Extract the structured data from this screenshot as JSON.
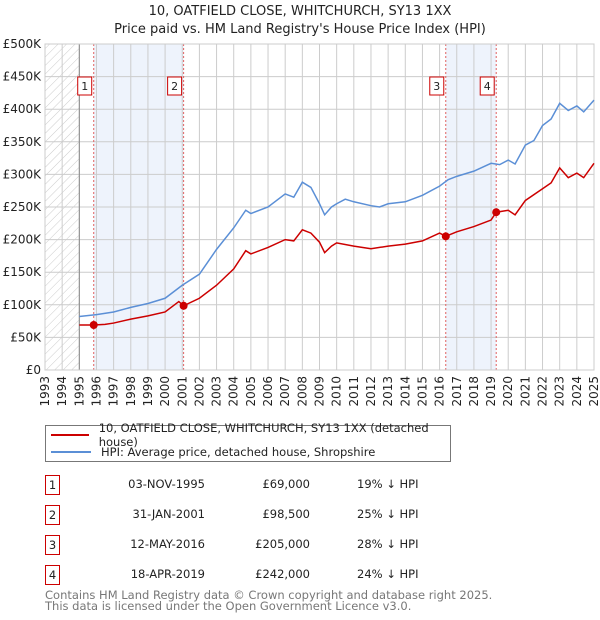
{
  "title_line1": "10, OATFIELD CLOSE, WHITCHURCH, SY13 1XX",
  "title_line2": "Price paid vs. HM Land Registry's House Price Index (HPI)",
  "colors": {
    "property": "#cc0000",
    "hpi": "#5b8fd6",
    "shade": "#eef3fc"
  },
  "chart_data": {
    "type": "line",
    "title": "10, OATFIELD CLOSE, WHITCHURCH, SY13 1XX — Price paid vs. HM Land Registry's House Price Index (HPI)",
    "xlim": [
      1993,
      2025
    ],
    "ylim": [
      0,
      500000
    ],
    "y_ticks": [
      0,
      50000,
      100000,
      150000,
      200000,
      250000,
      300000,
      350000,
      400000,
      450000,
      500000
    ],
    "y_tick_labels": [
      "£0",
      "£50K",
      "£100K",
      "£150K",
      "£200K",
      "£250K",
      "£300K",
      "£350K",
      "£400K",
      "£450K",
      "£500K"
    ],
    "x_ticks": [
      "1993",
      "1994",
      "1995",
      "1996",
      "1997",
      "1998",
      "1999",
      "2000",
      "2001",
      "2002",
      "2003",
      "2004",
      "2005",
      "2006",
      "2007",
      "2008",
      "2009",
      "2010",
      "2011",
      "2012",
      "2013",
      "2014",
      "2015",
      "2016",
      "2017",
      "2018",
      "2019",
      "2020",
      "2021",
      "2022",
      "2023",
      "2024",
      "2025"
    ],
    "grid": true,
    "legend_position": "below",
    "hatched_range": [
      1993,
      1995
    ],
    "shaded_ranges": [
      [
        1995.84,
        2001.08
      ],
      [
        2016.36,
        2019.3
      ]
    ],
    "series": [
      {
        "name": "10, OATFIELD CLOSE, WHITCHURCH, SY13 1XX (detached house)",
        "color": "#cc0000",
        "x": [
          1995.0,
          1995.84,
          1996.5,
          1997,
          1998,
          1999,
          2000,
          2000.8,
          2001.08,
          2002,
          2003,
          2004,
          2004.7,
          2005,
          2006,
          2007,
          2007.5,
          2008,
          2008.5,
          2009,
          2009.3,
          2009.7,
          2010,
          2011,
          2012,
          2013,
          2014,
          2015,
          2016,
          2016.36,
          2017,
          2018,
          2019,
          2019.3,
          2020,
          2020.4,
          2021,
          2022,
          2022.5,
          2023,
          2023.5,
          2024,
          2024.4,
          2025
        ],
        "y": [
          69000,
          69000,
          70000,
          72000,
          78000,
          83000,
          89000,
          105000,
          98500,
          110000,
          130000,
          155000,
          183000,
          178000,
          188000,
          200000,
          198000,
          215000,
          210000,
          196000,
          180000,
          190000,
          195000,
          190000,
          186000,
          190000,
          193000,
          198000,
          210000,
          205000,
          212000,
          220000,
          230000,
          242000,
          245000,
          238000,
          260000,
          278000,
          287000,
          310000,
          295000,
          302000,
          295000,
          317000
        ]
      },
      {
        "name": "HPI: Average price, detached house, Shropshire",
        "color": "#5b8fd6",
        "x": [
          1995.0,
          1996,
          1997,
          1998,
          1999,
          2000,
          2001,
          2002,
          2003,
          2004,
          2004.7,
          2005,
          2006,
          2007,
          2007.5,
          2008,
          2008.5,
          2009,
          2009.3,
          2009.7,
          2010,
          2010.5,
          2011,
          2012,
          2012.5,
          2013,
          2014,
          2015,
          2016,
          2016.5,
          2017,
          2018,
          2019,
          2019.5,
          2020,
          2020.4,
          2021,
          2021.5,
          2022,
          2022.5,
          2023,
          2023.5,
          2024,
          2024.4,
          2025
        ],
        "y": [
          82000,
          85000,
          89000,
          96000,
          102000,
          110000,
          130000,
          147000,
          185000,
          218000,
          245000,
          240000,
          250000,
          270000,
          265000,
          288000,
          280000,
          255000,
          238000,
          250000,
          255000,
          262000,
          258000,
          252000,
          250000,
          255000,
          258000,
          268000,
          282000,
          292000,
          297000,
          305000,
          317000,
          315000,
          322000,
          316000,
          345000,
          352000,
          375000,
          385000,
          409000,
          398000,
          405000,
          396000,
          414000
        ]
      }
    ],
    "sales": [
      {
        "label": "1",
        "x": 1995.84,
        "y": 69000
      },
      {
        "label": "2",
        "x": 2001.08,
        "y": 98500
      },
      {
        "label": "3",
        "x": 2016.36,
        "y": 205000
      },
      {
        "label": "4",
        "x": 2019.3,
        "y": 242000
      }
    ]
  },
  "legend": {
    "property": "10, OATFIELD CLOSE, WHITCHURCH, SY13 1XX (detached house)",
    "hpi": "HPI: Average price, detached house, Shropshire"
  },
  "transactions": [
    {
      "num": "1",
      "date": "03-NOV-1995",
      "price": "£69,000",
      "hpi": "19% ↓ HPI"
    },
    {
      "num": "2",
      "date": "31-JAN-2001",
      "price": "£98,500",
      "hpi": "25% ↓ HPI"
    },
    {
      "num": "3",
      "date": "12-MAY-2016",
      "price": "£205,000",
      "hpi": "28% ↓ HPI"
    },
    {
      "num": "4",
      "date": "18-APR-2019",
      "price": "£242,000",
      "hpi": "24% ↓ HPI"
    }
  ],
  "footer": {
    "line1": "Contains HM Land Registry data © Crown copyright and database right 2025.",
    "line2": "This data is licensed under the Open Government Licence v3.0."
  }
}
